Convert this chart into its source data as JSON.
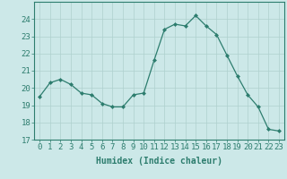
{
  "x": [
    0,
    1,
    2,
    3,
    4,
    5,
    6,
    7,
    8,
    9,
    10,
    11,
    12,
    13,
    14,
    15,
    16,
    17,
    18,
    19,
    20,
    21,
    22,
    23
  ],
  "y": [
    19.5,
    20.3,
    20.5,
    20.2,
    19.7,
    19.6,
    19.1,
    18.9,
    18.9,
    19.6,
    19.7,
    21.6,
    23.4,
    23.7,
    23.6,
    24.2,
    23.6,
    23.1,
    21.9,
    20.7,
    19.6,
    18.9,
    17.6,
    17.5
  ],
  "line_color": "#2d7d6e",
  "marker": "D",
  "marker_size": 2.0,
  "bg_color": "#cce8e8",
  "grid_color": "#aed0ce",
  "axis_color": "#2d7d6e",
  "tick_color": "#2d7d6e",
  "xlabel": "Humidex (Indice chaleur)",
  "xlim": [
    -0.5,
    23.5
  ],
  "ylim": [
    17,
    25
  ],
  "yticks": [
    17,
    18,
    19,
    20,
    21,
    22,
    23,
    24
  ],
  "xticks": [
    0,
    1,
    2,
    3,
    4,
    5,
    6,
    7,
    8,
    9,
    10,
    11,
    12,
    13,
    14,
    15,
    16,
    17,
    18,
    19,
    20,
    21,
    22,
    23
  ],
  "xlabel_fontsize": 7,
  "tick_fontsize": 6.5
}
